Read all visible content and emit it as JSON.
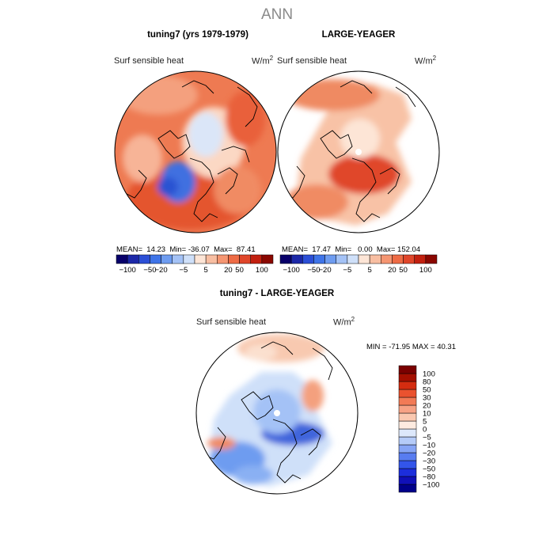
{
  "title": "ANN",
  "panels": [
    {
      "id": "tuning7",
      "title": "tuning7 (yrs 1979-1979)",
      "variable": "Surf sensible heat",
      "units": "W/m",
      "units_exp": "2",
      "stats": {
        "mean_label": "MEAN=",
        "mean": "14.23",
        "min_label": "Min=",
        "min": "-36.07",
        "max_label": "Max=",
        "max": "87.41"
      }
    },
    {
      "id": "large-yeager",
      "title": "LARGE-YEAGER",
      "variable": "Surf sensible heat",
      "units": "W/m",
      "units_exp": "2",
      "stats": {
        "mean_label": "MEAN=",
        "mean": "17.47",
        "min_label": "Min=",
        "min": "0.00",
        "max_label": "Max=",
        "max": "152.04"
      }
    },
    {
      "id": "difference",
      "title": "tuning7 - LARGE-YEAGER",
      "variable": "Surf sensible heat",
      "units": "W/m",
      "units_exp": "2",
      "stats_text": "MIN = -71.95 MAX =  40.31"
    }
  ],
  "colorbar_horizontal": {
    "colors": [
      "#08006a",
      "#1c28a8",
      "#2c4fd6",
      "#3f74e8",
      "#6e9cf0",
      "#a4c2f6",
      "#cfe0f9",
      "#fde5d6",
      "#f8bea2",
      "#f59672",
      "#ee6b45",
      "#e0462a",
      "#c2200f",
      "#8a0700"
    ],
    "labels": [
      "-100",
      "-50",
      "-20",
      "-5",
      "5",
      "20",
      "50",
      "100"
    ]
  },
  "colorbar_vertical": {
    "colors": [
      "#00008a",
      "#1010b8",
      "#1c2edc",
      "#3355ea",
      "#587cf0",
      "#86a4f5",
      "#b5cbf8",
      "#dde8fb",
      "#fdebe0",
      "#fac8b0",
      "#f7a285",
      "#f27a56",
      "#ea522f",
      "#d42c10",
      "#a40f00",
      "#7a0000"
    ],
    "labels": [
      "100",
      "80",
      "50",
      "30",
      "20",
      "10",
      "5",
      "0",
      "-5",
      "-10",
      "-20",
      "-30",
      "-50",
      "-80",
      "-100"
    ]
  }
}
